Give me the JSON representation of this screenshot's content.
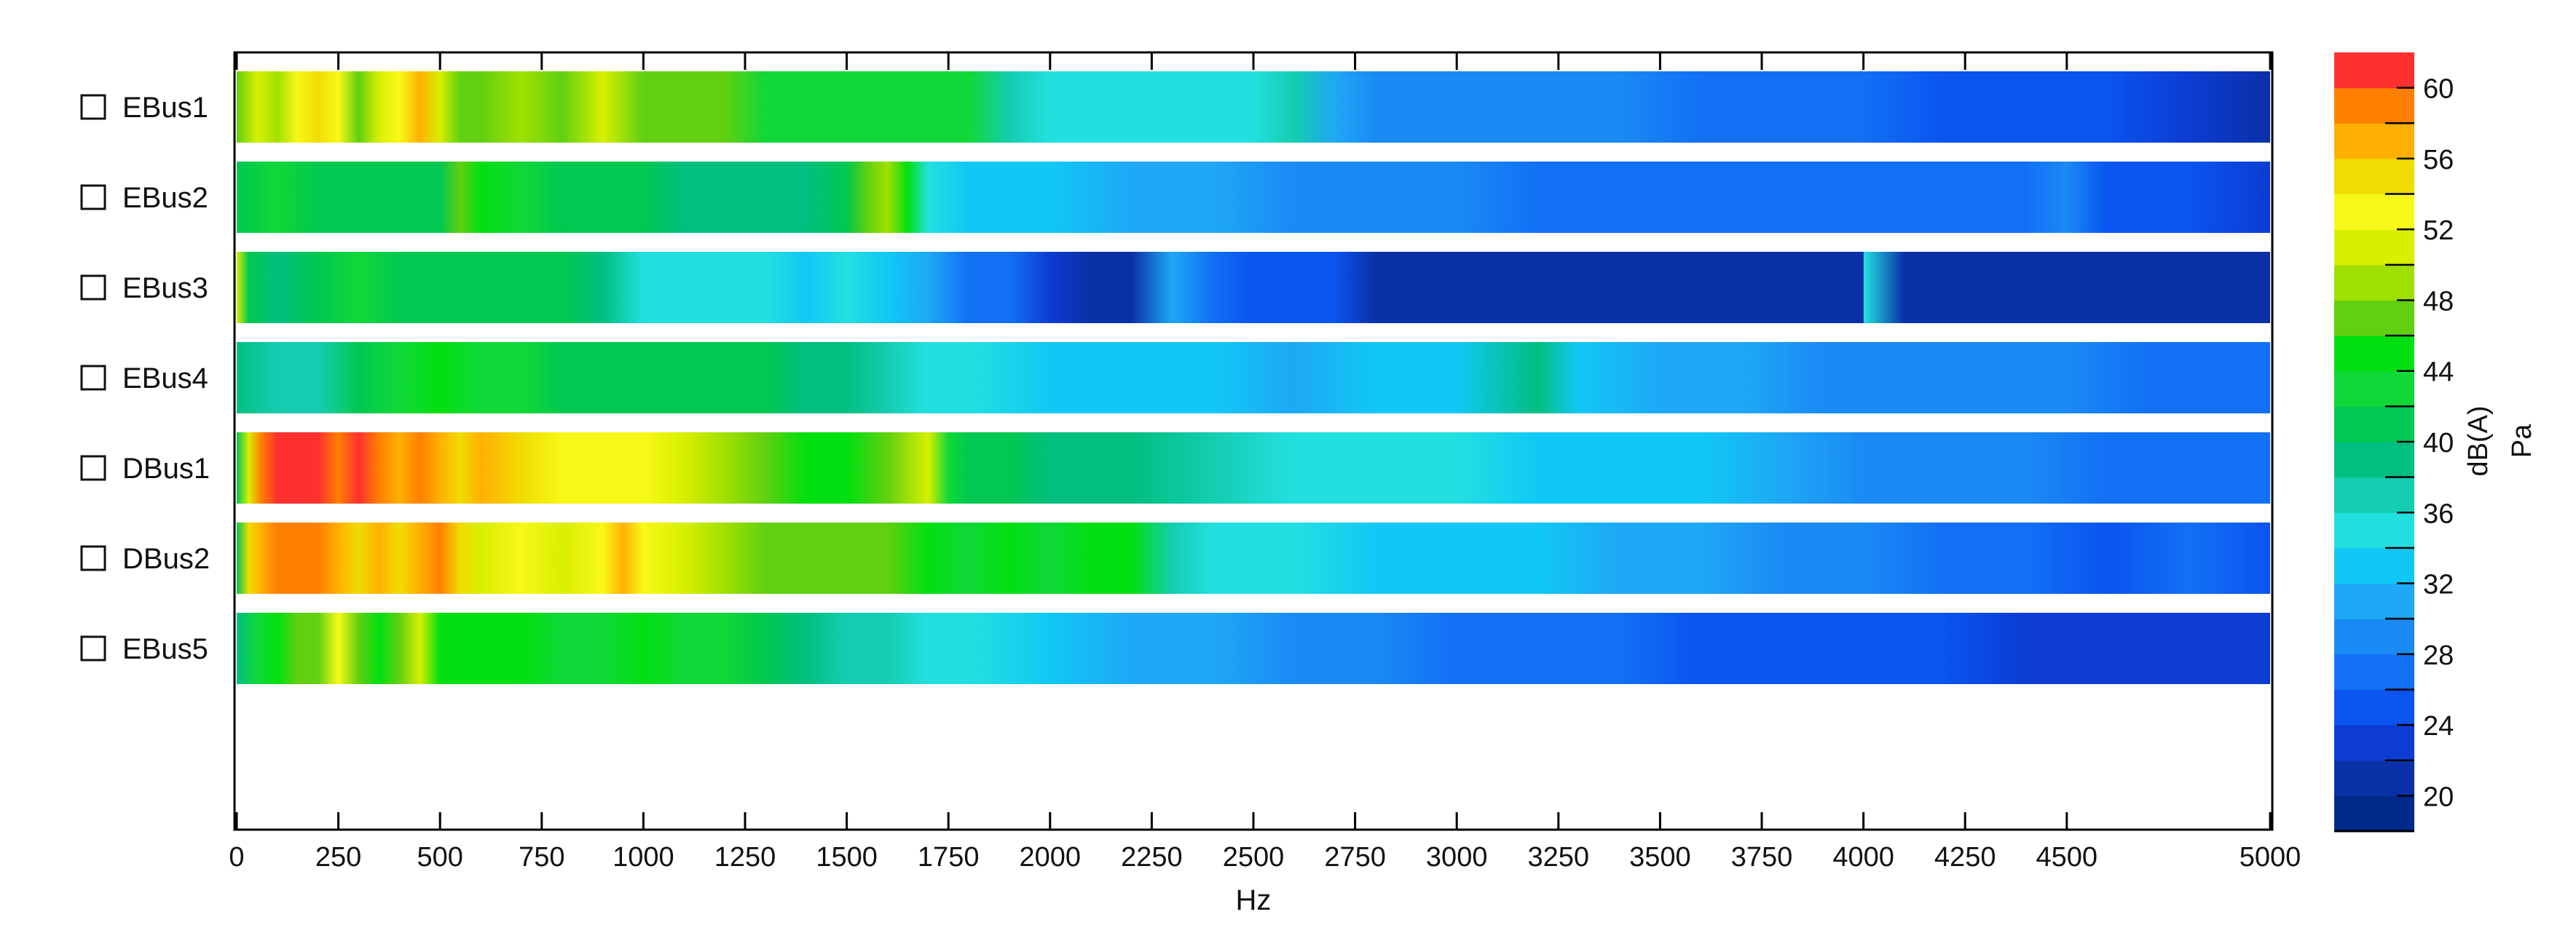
{
  "chart_data": {
    "type": "heatmap",
    "title": "",
    "xlabel": "Hz",
    "ylabel": "",
    "xlim": [
      0,
      5000
    ],
    "x_ticks": [
      0,
      250,
      500,
      750,
      1000,
      1250,
      1500,
      1750,
      2000,
      2250,
      2500,
      2750,
      3000,
      3250,
      3500,
      3750,
      4000,
      4250,
      4500,
      5000
    ],
    "rows": [
      {
        "label": "EBus1",
        "x": [
          0,
          50,
          100,
          150,
          200,
          250,
          300,
          350,
          400,
          450,
          500,
          550,
          600,
          700,
          800,
          900,
          1000,
          1100,
          1200,
          1300,
          1400,
          1500,
          1600,
          1700,
          1800,
          1900,
          2000,
          2100,
          2200,
          2300,
          2400,
          2500,
          2600,
          2700,
          2800,
          3000,
          3200,
          3400,
          3600,
          3800,
          4000,
          4200,
          4400,
          4600,
          4800,
          5000
        ],
        "values": [
          47,
          50,
          49,
          52,
          55,
          52,
          48,
          50,
          52,
          56,
          50,
          47,
          46,
          49,
          48,
          50,
          46,
          48,
          47,
          43,
          42,
          43,
          42,
          43,
          42,
          36,
          34,
          34,
          34,
          35,
          34,
          34,
          36,
          30,
          29,
          28,
          28,
          28,
          27,
          27,
          26,
          25,
          24,
          24,
          23,
          21
        ]
      },
      {
        "label": "EBus2",
        "x": [
          0,
          100,
          200,
          300,
          400,
          500,
          550,
          600,
          700,
          800,
          900,
          1000,
          1100,
          1200,
          1300,
          1400,
          1500,
          1550,
          1600,
          1650,
          1700,
          1800,
          1900,
          2000,
          2200,
          2400,
          2600,
          2800,
          3000,
          3200,
          3400,
          3600,
          3800,
          4000,
          4200,
          4400,
          4500,
          4600,
          4800,
          5000
        ],
        "values": [
          41,
          42,
          41,
          41,
          40,
          41,
          47,
          44,
          42,
          41,
          40,
          40,
          39,
          39,
          38,
          38,
          40,
          47,
          49,
          44,
          34,
          33,
          32,
          32,
          31,
          30,
          29,
          29,
          28,
          27,
          27,
          26,
          27,
          27,
          26,
          26,
          28,
          25,
          24,
          23
        ]
      },
      {
        "label": "EBus3",
        "x": [
          0,
          30,
          100,
          200,
          300,
          400,
          500,
          600,
          700,
          800,
          900,
          1000,
          1100,
          1200,
          1300,
          1400,
          1500,
          1600,
          1700,
          1800,
          1900,
          2000,
          2100,
          2200,
          2300,
          2400,
          2500,
          2600,
          2700,
          2800,
          3000,
          3500,
          4000,
          4001,
          4100,
          4500,
          5000
        ],
        "values": [
          50,
          40,
          39,
          40,
          42,
          41,
          40,
          41,
          40,
          41,
          38,
          35,
          34,
          35,
          34,
          33,
          34,
          33,
          30,
          27,
          27,
          22,
          21,
          21,
          30,
          26,
          25,
          24,
          24,
          20,
          20,
          20,
          20,
          35,
          20,
          20,
          20
        ]
      },
      {
        "label": "EBus4",
        "x": [
          0,
          100,
          200,
          300,
          400,
          500,
          600,
          700,
          800,
          900,
          1000,
          1100,
          1200,
          1300,
          1400,
          1500,
          1600,
          1700,
          1800,
          2000,
          2200,
          2400,
          2600,
          2800,
          3000,
          3200,
          3300,
          3500,
          3700,
          3900,
          4100,
          4300,
          4500,
          4700,
          5000
        ],
        "values": [
          38,
          36,
          37,
          40,
          43,
          44,
          43,
          42,
          41,
          40,
          41,
          40,
          41,
          40,
          39,
          38,
          37,
          35,
          34,
          33,
          32,
          32,
          31,
          32,
          32,
          38,
          32,
          30,
          30,
          29,
          29,
          28,
          28,
          27,
          27
        ]
      },
      {
        "label": "DBus1",
        "x": [
          0,
          30,
          60,
          100,
          150,
          200,
          250,
          300,
          350,
          400,
          450,
          500,
          550,
          600,
          700,
          800,
          900,
          1000,
          1100,
          1200,
          1300,
          1400,
          1500,
          1600,
          1700,
          1750,
          1800,
          1900,
          2000,
          2200,
          2400,
          2600,
          2800,
          3000,
          3200,
          3400,
          3600,
          3800,
          4000,
          4200,
          4400,
          4600,
          4800,
          5000
        ],
        "values": [
          40,
          50,
          58,
          60,
          61,
          60,
          59,
          61,
          58,
          57,
          59,
          56,
          54,
          57,
          54,
          52,
          53,
          52,
          51,
          49,
          47,
          45,
          45,
          47,
          50,
          42,
          40,
          40,
          39,
          38,
          37,
          35,
          35,
          34,
          33,
          33,
          32,
          30,
          29,
          28,
          28,
          27,
          26,
          26
        ]
      },
      {
        "label": "DBus2",
        "x": [
          0,
          30,
          60,
          100,
          150,
          200,
          250,
          300,
          350,
          400,
          450,
          500,
          550,
          600,
          700,
          800,
          900,
          950,
          1000,
          1100,
          1200,
          1300,
          1400,
          1500,
          1600,
          1700,
          1800,
          1900,
          2000,
          2100,
          2200,
          2300,
          2400,
          2600,
          2800,
          3000,
          3200,
          3400,
          3600,
          3800,
          4000,
          4200,
          4400,
          4600,
          4800,
          5000
        ],
        "values": [
          40,
          55,
          57,
          58,
          59,
          58,
          56,
          54,
          57,
          55,
          56,
          58,
          54,
          50,
          52,
          51,
          52,
          57,
          52,
          50,
          49,
          48,
          47,
          48,
          46,
          45,
          43,
          44,
          43,
          44,
          44,
          36,
          35,
          34,
          33,
          33,
          32,
          30,
          30,
          28,
          28,
          27,
          26,
          25,
          26,
          24
        ]
      },
      {
        "label": "EBus5",
        "x": [
          0,
          50,
          100,
          150,
          200,
          250,
          300,
          350,
          400,
          450,
          500,
          600,
          700,
          800,
          900,
          1000,
          1100,
          1200,
          1300,
          1400,
          1500,
          1600,
          1700,
          1800,
          2000,
          2200,
          2400,
          2600,
          2800,
          3000,
          3200,
          3400,
          3600,
          3800,
          4000,
          4200,
          4400,
          4600,
          4800,
          5000
        ],
        "values": [
          38,
          42,
          44,
          48,
          46,
          52,
          46,
          44,
          46,
          50,
          44,
          45,
          44,
          43,
          42,
          44,
          43,
          42,
          40,
          38,
          37,
          36,
          34,
          34,
          32,
          31,
          30,
          28,
          28,
          27,
          27,
          26,
          25,
          25,
          24,
          24,
          23,
          23,
          22,
          22
        ]
      }
    ],
    "colorbar": {
      "labels": [
        "dB(A)",
        "Pa"
      ],
      "range": [
        18,
        62
      ],
      "ticks": [
        20,
        24,
        28,
        32,
        36,
        40,
        44,
        48,
        52,
        56,
        60
      ],
      "bands": [
        "#002a8a",
        "#0a30a8",
        "#0c3cd2",
        "#0a54f0",
        "#1270f5",
        "#1a8af5",
        "#1ea8f5",
        "#10c8f5",
        "#22e0e0",
        "#14cdb0",
        "#00bf80",
        "#00c850",
        "#10d838",
        "#00e010",
        "#60d010",
        "#a0e000",
        "#d8ef00",
        "#f8f818",
        "#f0dc00",
        "#ffb000",
        "#ff8000",
        "#ff3030"
      ]
    },
    "legend": "left",
    "grid": false
  }
}
